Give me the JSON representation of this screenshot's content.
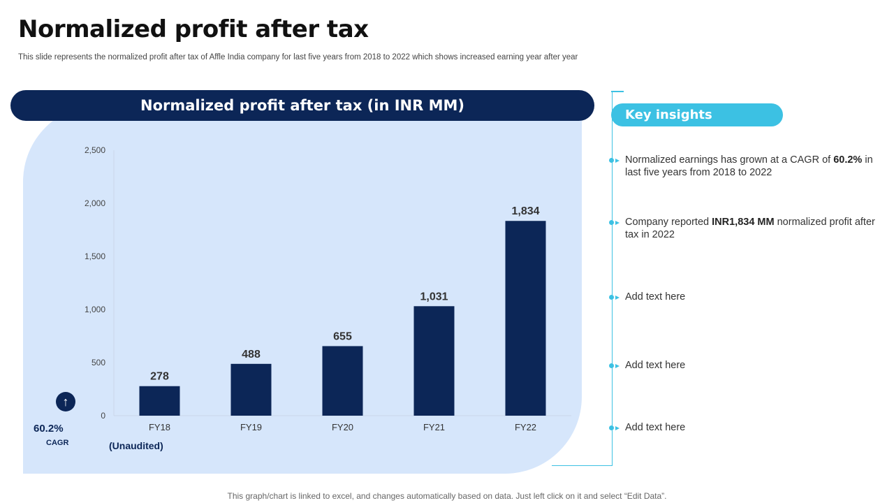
{
  "page": {
    "title": "Normalized profit after tax",
    "subtitle": "This slide represents the normalized profit after tax  of Affle India company for last five  years from 2018 to 2022 which shows increased earning year after year",
    "footer": "This graph/chart is linked to excel, and changes automatically based on data. Just left click on it and select “Edit Data”."
  },
  "chart_header": "Normalized profit after tax (in INR MM)",
  "chart_data": {
    "type": "bar",
    "title": "Normalized profit after tax (in INR MM)",
    "categories": [
      "FY18",
      "FY19",
      "FY20",
      "FY21",
      "FY22"
    ],
    "values": [
      278,
      488,
      655,
      1031,
      1834
    ],
    "value_labels": [
      "278",
      "488",
      "655",
      "1,031",
      "1,834"
    ],
    "yticks": [
      "0",
      "500",
      "1,000",
      "1,500",
      "2,000",
      "2,500"
    ],
    "ylim": [
      0,
      2500
    ],
    "grid": false,
    "bar_color": "#0c2657",
    "note": "(Unaudited)"
  },
  "cagr": {
    "value": "60.2%",
    "label": "CAGR",
    "icon": "arrow-up-icon"
  },
  "insights": {
    "header": "Key insights",
    "items": [
      {
        "pre": "Normalized earnings has grown at a CAGR of ",
        "bold": "60.2%",
        "post": " in last five years from 2018 to 2022"
      },
      {
        "pre": "Company reported ",
        "bold": "INR1,834 MM",
        "post": " normalized profit after tax in 2022"
      },
      {
        "pre": "Add text here",
        "bold": "",
        "post": ""
      },
      {
        "pre": "Add text here",
        "bold": "",
        "post": ""
      },
      {
        "pre": "Add text here",
        "bold": "",
        "post": ""
      }
    ]
  },
  "colors": {
    "navy": "#0c2657",
    "panel": "#d6e6fb",
    "accent": "#3cc1e3"
  }
}
